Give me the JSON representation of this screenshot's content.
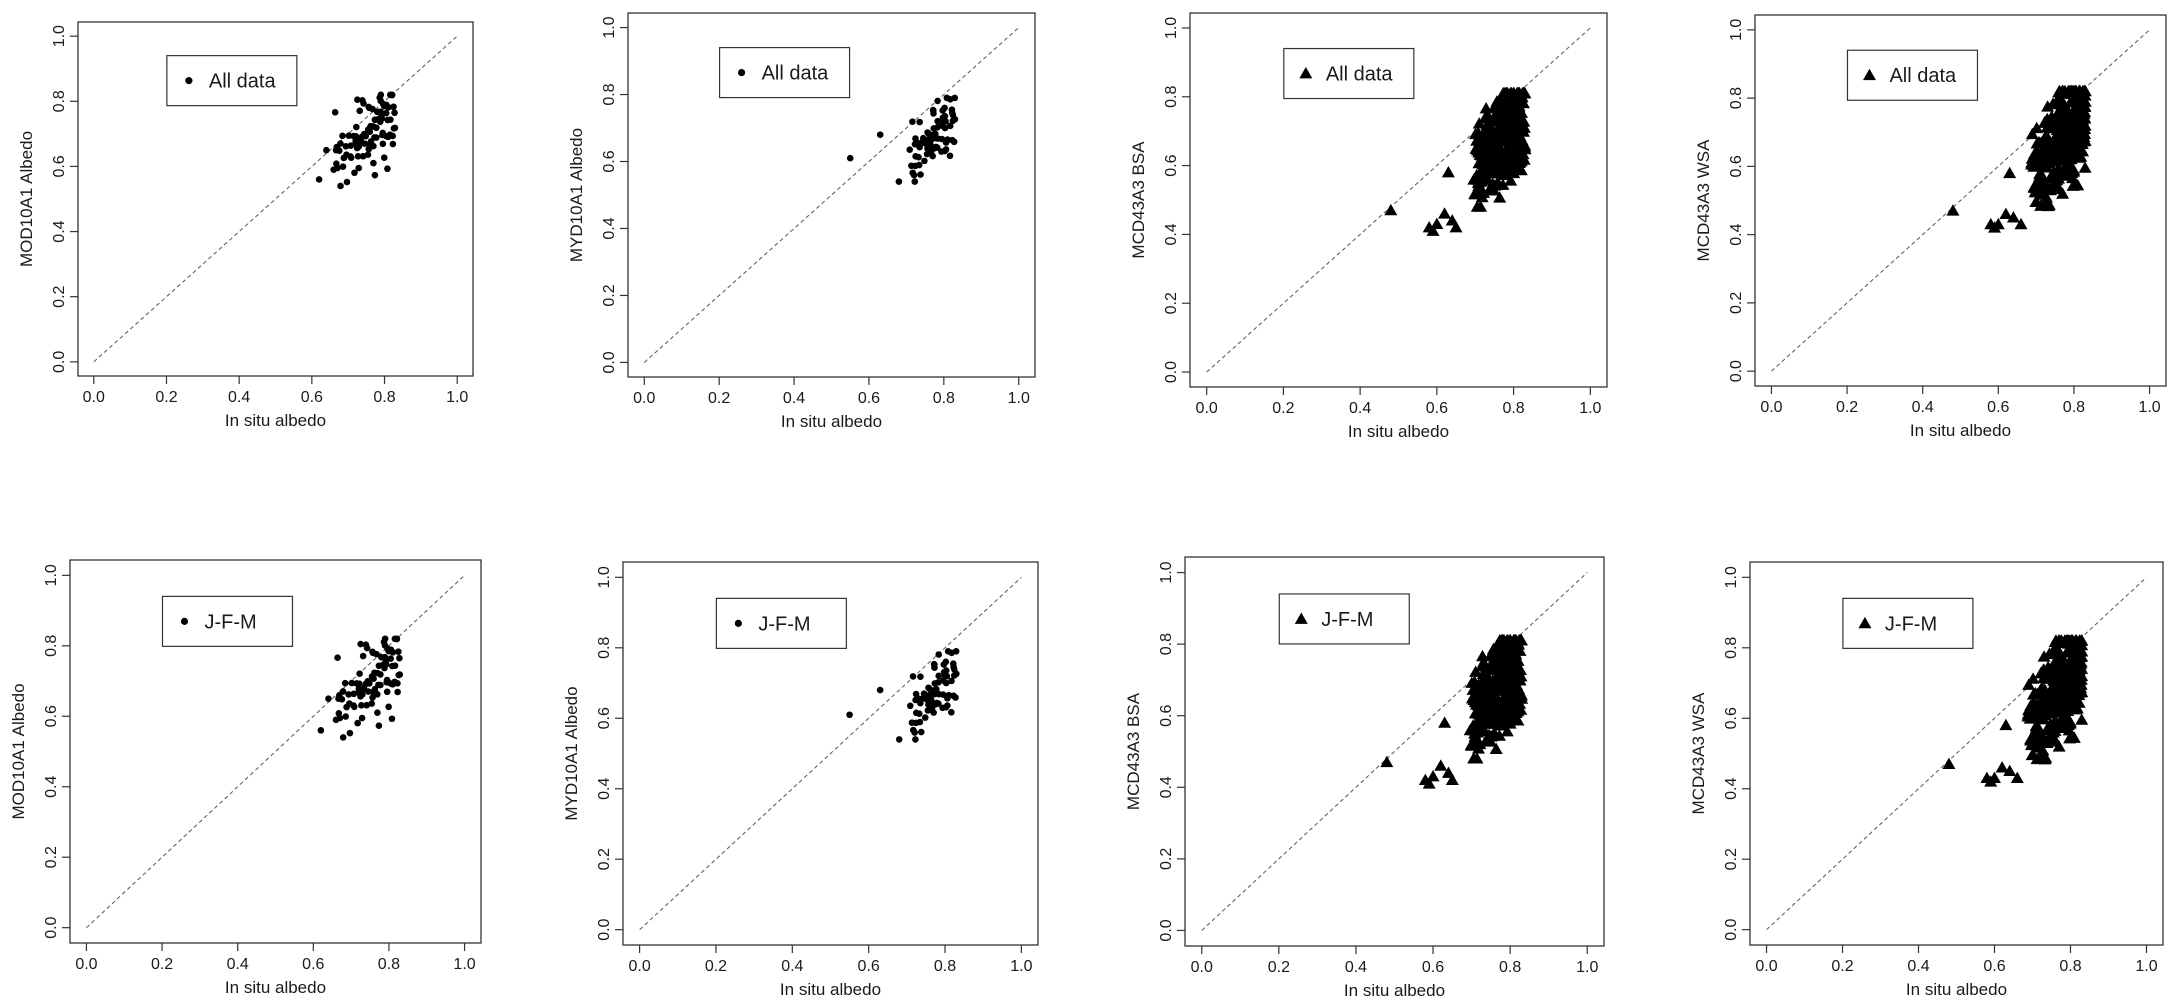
{
  "figure": {
    "description_type": "scatter-grid",
    "colors": {
      "axis": "#333333",
      "points": "#000000",
      "reference_line": "#555555"
    }
  },
  "chart_data": [
    {
      "type": "scatter",
      "title": "",
      "xlabel": "In situ albedo",
      "ylabel": "MOD10A1 Albedo",
      "legend": "All data",
      "marker": "circle",
      "xlim": [
        0,
        1
      ],
      "ylim": [
        0,
        1
      ],
      "xticks": [
        "0.0",
        "0.2",
        "0.4",
        "0.6",
        "0.8",
        "1.0"
      ],
      "yticks": [
        "0.0",
        "0.2",
        "0.4",
        "0.6",
        "0.8",
        "1.0"
      ],
      "reference_line": "1:1",
      "points_count": 90,
      "seed": 11,
      "x_range": [
        0.62,
        0.83
      ],
      "y_range": [
        0.54,
        0.82
      ],
      "corr": 0.55,
      "extra_points": [
        [
          0.62,
          0.56
        ],
        [
          0.64,
          0.65
        ],
        [
          0.66,
          0.59
        ]
      ]
    },
    {
      "type": "scatter",
      "title": "",
      "xlabel": "In situ albedo",
      "ylabel": "MYD10A1 Albedo",
      "legend": "All data",
      "marker": "circle",
      "xlim": [
        0,
        1
      ],
      "ylim": [
        0,
        1
      ],
      "xticks": [
        "0.0",
        "0.2",
        "0.4",
        "0.6",
        "0.8",
        "1.0"
      ],
      "yticks": [
        "0.0",
        "0.2",
        "0.4",
        "0.6",
        "0.8",
        "1.0"
      ],
      "reference_line": "1:1",
      "points_count": 70,
      "seed": 23,
      "x_range": [
        0.68,
        0.83
      ],
      "y_range": [
        0.54,
        0.79
      ],
      "corr": 0.5,
      "extra_points": [
        [
          0.55,
          0.61
        ],
        [
          0.63,
          0.68
        ],
        [
          0.68,
          0.54
        ]
      ]
    },
    {
      "type": "scatter",
      "title": "",
      "xlabel": "In situ albedo",
      "ylabel": "MCD43A3 BSA",
      "legend": "All data",
      "marker": "triangle",
      "xlim": [
        0,
        1
      ],
      "ylim": [
        0,
        1
      ],
      "xticks": [
        "0.0",
        "0.2",
        "0.4",
        "0.6",
        "0.8",
        "1.0"
      ],
      "yticks": [
        "0.0",
        "0.2",
        "0.4",
        "0.6",
        "0.8",
        "1.0"
      ],
      "reference_line": "1:1",
      "points_count": 320,
      "seed": 37,
      "x_range": [
        0.67,
        0.83
      ],
      "y_range": [
        0.48,
        0.81
      ],
      "corr": 0.6,
      "extra_points": [
        [
          0.48,
          0.47
        ],
        [
          0.58,
          0.42
        ],
        [
          0.59,
          0.41
        ],
        [
          0.6,
          0.43
        ],
        [
          0.62,
          0.46
        ],
        [
          0.64,
          0.44
        ],
        [
          0.65,
          0.42
        ],
        [
          0.63,
          0.58
        ]
      ]
    },
    {
      "type": "scatter",
      "title": "",
      "xlabel": "In situ albedo",
      "ylabel": "MCD43A3 WSA",
      "legend": "All data",
      "marker": "triangle",
      "xlim": [
        0,
        1
      ],
      "ylim": [
        0,
        1
      ],
      "xticks": [
        "0.0",
        "0.2",
        "0.4",
        "0.6",
        "0.8",
        "1.0"
      ],
      "yticks": [
        "0.0",
        "0.2",
        "0.4",
        "0.6",
        "0.8",
        "1.0"
      ],
      "reference_line": "1:1",
      "points_count": 320,
      "seed": 51,
      "x_range": [
        0.66,
        0.83
      ],
      "y_range": [
        0.48,
        0.82
      ],
      "corr": 0.6,
      "extra_points": [
        [
          0.48,
          0.47
        ],
        [
          0.58,
          0.43
        ],
        [
          0.59,
          0.42
        ],
        [
          0.6,
          0.43
        ],
        [
          0.62,
          0.46
        ],
        [
          0.64,
          0.45
        ],
        [
          0.66,
          0.43
        ],
        [
          0.63,
          0.58
        ]
      ]
    },
    {
      "type": "scatter",
      "title": "",
      "xlabel": "In situ albedo",
      "ylabel": "MOD10A1 Albedo",
      "legend": "J-F-M",
      "marker": "circle",
      "xlim": [
        0,
        1
      ],
      "ylim": [
        0,
        1
      ],
      "xticks": [
        "0.0",
        "0.2",
        "0.4",
        "0.6",
        "0.8",
        "1.0"
      ],
      "yticks": [
        "0.0",
        "0.2",
        "0.4",
        "0.6",
        "0.8",
        "1.0"
      ],
      "reference_line": "1:1",
      "points_count": 90,
      "seed": 11,
      "x_range": [
        0.62,
        0.83
      ],
      "y_range": [
        0.54,
        0.82
      ],
      "corr": 0.55,
      "extra_points": [
        [
          0.62,
          0.56
        ],
        [
          0.64,
          0.65
        ],
        [
          0.66,
          0.59
        ]
      ]
    },
    {
      "type": "scatter",
      "title": "",
      "xlabel": "In situ albedo",
      "ylabel": "MYD10A1 Albedo",
      "legend": "J-F-M",
      "marker": "circle",
      "xlim": [
        0,
        1
      ],
      "ylim": [
        0,
        1
      ],
      "xticks": [
        "0.0",
        "0.2",
        "0.4",
        "0.6",
        "0.8",
        "1.0"
      ],
      "yticks": [
        "0.0",
        "0.2",
        "0.4",
        "0.6",
        "0.8",
        "1.0"
      ],
      "reference_line": "1:1",
      "points_count": 70,
      "seed": 23,
      "x_range": [
        0.68,
        0.83
      ],
      "y_range": [
        0.54,
        0.79
      ],
      "corr": 0.5,
      "extra_points": [
        [
          0.55,
          0.61
        ],
        [
          0.63,
          0.68
        ],
        [
          0.68,
          0.54
        ]
      ]
    },
    {
      "type": "scatter",
      "title": "",
      "xlabel": "In situ albedo",
      "ylabel": "MCD43A3 BSA",
      "legend": "J-F-M",
      "marker": "triangle",
      "xlim": [
        0,
        1
      ],
      "ylim": [
        0,
        1
      ],
      "xticks": [
        "0.0",
        "0.2",
        "0.4",
        "0.6",
        "0.8",
        "1.0"
      ],
      "yticks": [
        "0.0",
        "0.2",
        "0.4",
        "0.6",
        "0.8",
        "1.0"
      ],
      "reference_line": "1:1",
      "points_count": 320,
      "seed": 37,
      "x_range": [
        0.67,
        0.83
      ],
      "y_range": [
        0.48,
        0.81
      ],
      "corr": 0.6,
      "extra_points": [
        [
          0.48,
          0.47
        ],
        [
          0.58,
          0.42
        ],
        [
          0.59,
          0.41
        ],
        [
          0.6,
          0.43
        ],
        [
          0.62,
          0.46
        ],
        [
          0.64,
          0.44
        ],
        [
          0.65,
          0.42
        ],
        [
          0.63,
          0.58
        ]
      ]
    },
    {
      "type": "scatter",
      "title": "",
      "xlabel": "In situ albedo",
      "ylabel": "MCD43A3 WSA",
      "legend": "J-F-M",
      "marker": "triangle",
      "xlim": [
        0,
        1
      ],
      "ylim": [
        0,
        1
      ],
      "xticks": [
        "0.0",
        "0.2",
        "0.4",
        "0.6",
        "0.8",
        "1.0"
      ],
      "yticks": [
        "0.0",
        "0.2",
        "0.4",
        "0.6",
        "0.8",
        "1.0"
      ],
      "reference_line": "1:1",
      "points_count": 320,
      "seed": 51,
      "x_range": [
        0.66,
        0.83
      ],
      "y_range": [
        0.48,
        0.82
      ],
      "corr": 0.6,
      "extra_points": [
        [
          0.48,
          0.47
        ],
        [
          0.58,
          0.43
        ],
        [
          0.59,
          0.42
        ],
        [
          0.6,
          0.43
        ],
        [
          0.62,
          0.46
        ],
        [
          0.64,
          0.45
        ],
        [
          0.66,
          0.43
        ],
        [
          0.63,
          0.58
        ]
      ]
    }
  ]
}
